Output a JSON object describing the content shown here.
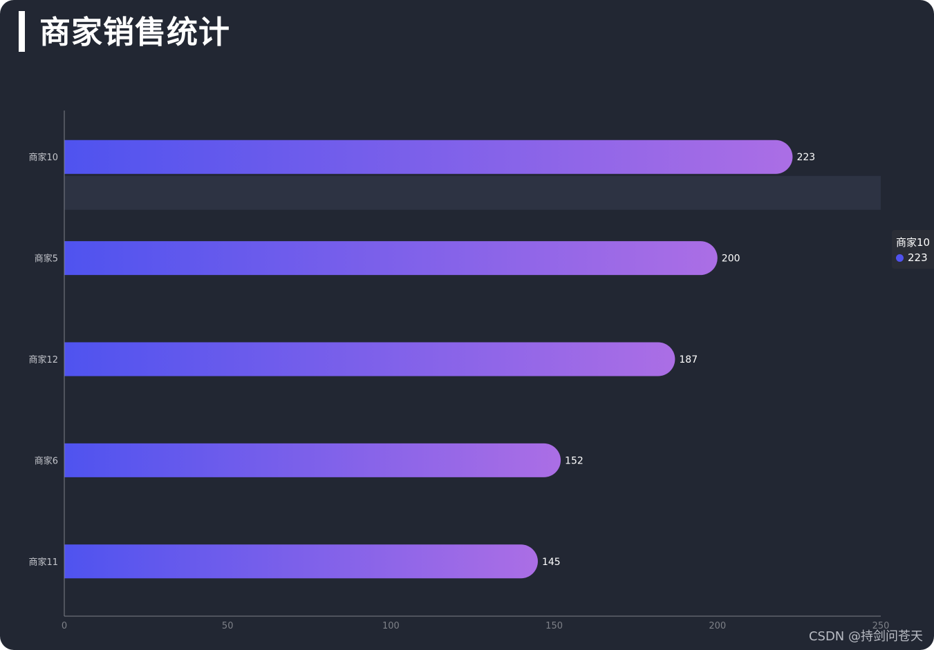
{
  "header": {
    "title": "商家销售统计"
  },
  "chart_data": {
    "type": "bar",
    "orientation": "horizontal",
    "categories": [
      "商家10",
      "商家5",
      "商家12",
      "商家6",
      "商家11"
    ],
    "values": [
      223,
      200,
      187,
      152,
      145
    ],
    "xlim": [
      0,
      250
    ],
    "xticks": [
      0,
      50,
      100,
      150,
      200,
      250
    ],
    "grid": false,
    "data_labels": true,
    "highlighted_category": "商家10",
    "gradient": [
      "#4f53ef",
      "#ab6ee5"
    ]
  },
  "tooltip": {
    "category": "商家10",
    "value": "223",
    "dot_color": "#5052ee"
  },
  "colors": {
    "background": "#222733",
    "axis": "#7e8188",
    "label": "#c4c6cc",
    "hover_band": "#2d3343"
  },
  "watermark": "CSDN @持剑问苍天"
}
